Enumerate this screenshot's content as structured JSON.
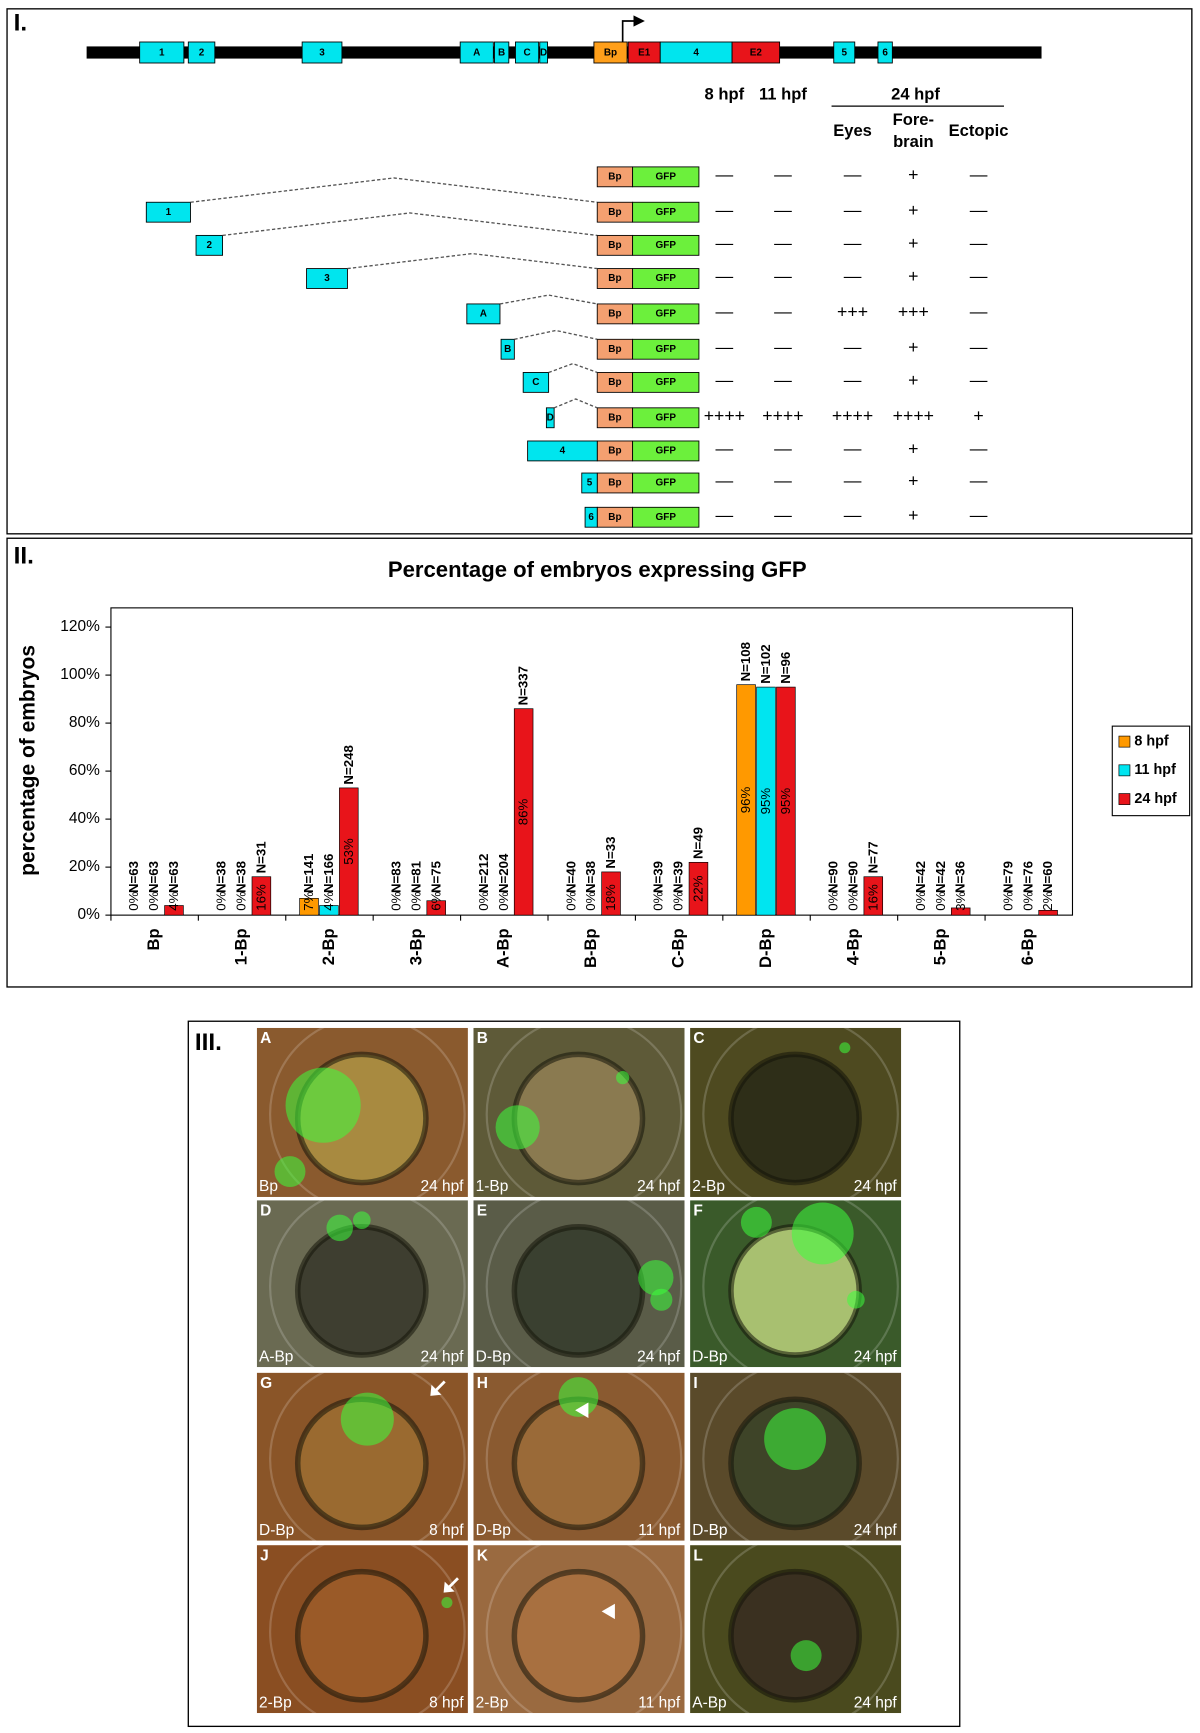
{
  "panel_1": {
    "label": "I.",
    "gene": [
      "1",
      "2",
      "3",
      "A",
      "B",
      "C",
      "D",
      "Bp",
      "E1",
      "4",
      "E2",
      "5",
      "6"
    ],
    "stage_headers": [
      "8 hpf",
      "11 hpf",
      "24 hpf"
    ],
    "tissue_headers": [
      [
        "Eyes"
      ],
      [
        "Fore-",
        "brain"
      ],
      [
        "Ectopic"
      ]
    ],
    "constructs": [
      {
        "promoter": "Bp",
        "reporter": "GFP",
        "expression": [
          "—",
          "—",
          "—",
          "+",
          "—"
        ]
      },
      {
        "enhancer": "1",
        "promoter": "Bp",
        "reporter": "GFP",
        "expression": [
          "—",
          "—",
          "—",
          "+",
          "—"
        ]
      },
      {
        "enhancer": "2",
        "promoter": "Bp",
        "reporter": "GFP",
        "expression": [
          "—",
          "—",
          "—",
          "+",
          "—"
        ]
      },
      {
        "enhancer": "3",
        "promoter": "Bp",
        "reporter": "GFP",
        "expression": [
          "—",
          "—",
          "—",
          "+",
          "—"
        ]
      },
      {
        "enhancer": "A",
        "promoter": "Bp",
        "reporter": "GFP",
        "expression": [
          "—",
          "—",
          "+++",
          "+++",
          "—"
        ]
      },
      {
        "enhancer": "B",
        "promoter": "Bp",
        "reporter": "GFP",
        "expression": [
          "—",
          "—",
          "—",
          "+",
          "—"
        ]
      },
      {
        "enhancer": "C",
        "promoter": "Bp",
        "reporter": "GFP",
        "expression": [
          "—",
          "—",
          "—",
          "+",
          "—"
        ]
      },
      {
        "enhancer": "D",
        "promoter": "Bp",
        "reporter": "GFP",
        "expression": [
          "++++",
          "++++",
          "++++",
          "++++",
          "+"
        ]
      },
      {
        "enhancer": "4",
        "promoter": "Bp",
        "reporter": "GFP",
        "expression": [
          "—",
          "—",
          "—",
          "+",
          "—"
        ]
      },
      {
        "enhancer": "5",
        "promoter": "Bp",
        "reporter": "GFP",
        "expression": [
          "—",
          "—",
          "—",
          "+",
          "—"
        ]
      },
      {
        "enhancer": "6",
        "promoter": "Bp",
        "reporter": "GFP",
        "expression": [
          "—",
          "—",
          "—",
          "+",
          "—"
        ]
      }
    ]
  },
  "chart_data": {
    "type": "bar",
    "panel_label": "II.",
    "title": "Percentage of embryos expressing GFP",
    "y_label": "percentage of embryos",
    "categories": [
      "Bp",
      "1-Bp",
      "2-Bp",
      "3-Bp",
      "A-Bp",
      "B-Bp",
      "C-Bp",
      "D-Bp",
      "4-Bp",
      "5-Bp",
      "6-Bp"
    ],
    "series": [
      {
        "name": "8 hpf",
        "color": "#ff9900",
        "values": [
          0,
          0,
          7,
          0,
          0,
          0,
          0,
          96,
          0,
          0,
          0
        ],
        "value_labels": [
          "0%",
          "0%",
          "7%",
          "0%",
          "0%",
          "0%",
          "0%",
          "96%",
          "0%",
          "0%",
          "0%"
        ],
        "n_labels": [
          "N=63",
          "N=38",
          "N=141",
          "N=83",
          "N=212",
          "N=40",
          "N=39",
          "N=108",
          "N=90",
          "N=42",
          "N=79"
        ]
      },
      {
        "name": "11 hpf",
        "color": "#00e5f0",
        "values": [
          0,
          0,
          4,
          0,
          0,
          0,
          0,
          95,
          0,
          0,
          0
        ],
        "value_labels": [
          "0%",
          "0%",
          "4%",
          "0%",
          "0%",
          "0%",
          "0%",
          "95%",
          "0%",
          "0%",
          "0%"
        ],
        "n_labels": [
          "N=63",
          "N=38",
          "N=166",
          "N=81",
          "N=204",
          "N=38",
          "N=39",
          "N=102",
          "N=90",
          "N=42",
          "N=76"
        ]
      },
      {
        "name": "24 hpf",
        "color": "#e8141a",
        "values": [
          4,
          16,
          53,
          6,
          86,
          18,
          22,
          95,
          16,
          3,
          2
        ],
        "value_labels": [
          "4%",
          "16%",
          "53%",
          "6%",
          "86%",
          "18%",
          "22%",
          "95%",
          "16%",
          "3%",
          "2%"
        ],
        "n_labels": [
          "N=63",
          "N=31",
          "N=248",
          "N=75",
          "N=337",
          "N=33",
          "N=49",
          "N=96",
          "N=77",
          "N=36",
          "N=60"
        ]
      }
    ],
    "ylim": [
      0,
      128
    ],
    "yticks": [
      {
        "value": 0,
        "label": "0%"
      },
      {
        "value": 20,
        "label": "20%"
      },
      {
        "value": 40,
        "label": "40%"
      },
      {
        "value": 60,
        "label": "60%"
      },
      {
        "value": 80,
        "label": "80%"
      },
      {
        "value": 100,
        "label": "100%"
      },
      {
        "value": 120,
        "label": "120%"
      }
    ],
    "legend": "right"
  },
  "panel_3": {
    "label": "III.",
    "images": [
      {
        "letter": "A",
        "construct": "Bp",
        "stage": "24 hpf"
      },
      {
        "letter": "B",
        "construct": "1-Bp",
        "stage": "24 hpf"
      },
      {
        "letter": "C",
        "construct": "2-Bp",
        "stage": "24 hpf"
      },
      {
        "letter": "D",
        "construct": "A-Bp",
        "stage": "24 hpf"
      },
      {
        "letter": "E",
        "construct": "D-Bp",
        "stage": "24 hpf"
      },
      {
        "letter": "F",
        "construct": "D-Bp",
        "stage": "24 hpf"
      },
      {
        "letter": "G",
        "construct": "D-Bp",
        "stage": "8 hpf"
      },
      {
        "letter": "H",
        "construct": "D-Bp",
        "stage": "11 hpf"
      },
      {
        "letter": "I",
        "construct": "D-Bp",
        "stage": "24 hpf"
      },
      {
        "letter": "J",
        "construct": "2-Bp",
        "stage": "8 hpf"
      },
      {
        "letter": "K",
        "construct": "2-Bp",
        "stage": "11 hpf"
      },
      {
        "letter": "L",
        "construct": "A-Bp",
        "stage": "24 hpf"
      }
    ]
  }
}
